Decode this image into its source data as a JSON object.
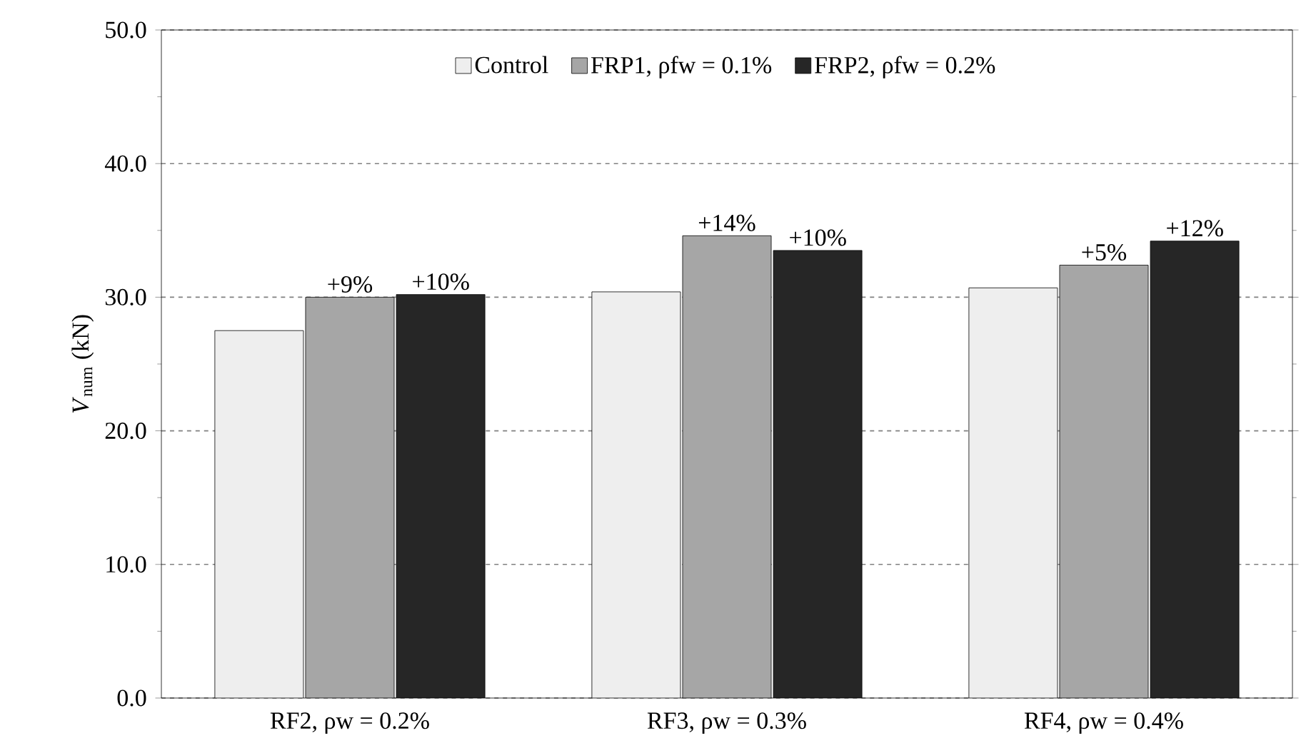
{
  "chart_data": {
    "type": "bar",
    "ylabel": "*V*$_{num}$ (kN)",
    "categories": [
      "RF2, ρw = 0.2%",
      "RF3, ρw = 0.3%",
      "RF4, ρw = 0.4%"
    ],
    "series": [
      {
        "name": "Control",
        "color": "#eeeeee",
        "values": [
          27.5,
          30.4,
          30.7
        ]
      },
      {
        "name": "FRP1, ρfw = 0.1%",
        "color": "#a6a6a6",
        "values": [
          30.0,
          34.6,
          32.4
        ]
      },
      {
        "name": "FRP2, ρfw = 0.2%",
        "color": "#262626",
        "values": [
          30.2,
          33.5,
          34.2
        ]
      }
    ],
    "annotations": [
      "+9%",
      "+10%",
      "+14%",
      "+10%",
      "+5%",
      "+12%"
    ],
    "ylim": [
      0,
      50
    ],
    "yticks": [
      {
        "value": 0,
        "label": "0.0"
      },
      {
        "value": 10,
        "label": "10.0"
      },
      {
        "value": 20,
        "label": "20.0"
      },
      {
        "value": 30,
        "label": "30.0"
      },
      {
        "value": 40,
        "label": "40.0"
      },
      {
        "value": 50,
        "label": "50.0"
      }
    ],
    "grid": "y",
    "legend": "top"
  }
}
